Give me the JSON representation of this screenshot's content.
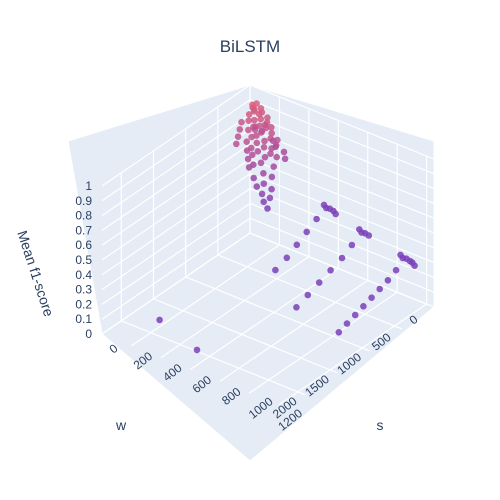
{
  "chart_data": {
    "type": "scatter",
    "title": "BiLSTM",
    "axes": {
      "x": {
        "label": "w",
        "ticks": [
          "0",
          "500",
          "1000",
          "1500",
          "2000"
        ]
      },
      "y": {
        "label": "s",
        "ticks": [
          "0",
          "200",
          "400",
          "600",
          "800",
          "1000",
          "1200"
        ]
      },
      "z": {
        "label": "Mean f1-score",
        "ticks": [
          "0",
          "0.1",
          "0.2",
          "0.3",
          "0.4",
          "0.5",
          "0.6",
          "0.7",
          "0.8",
          "0.9",
          "1"
        ]
      }
    },
    "colors": {
      "low": "#7b3fb8",
      "high": "#e0607a",
      "pane": "#e5ecf6",
      "grid": "#ffffff"
    },
    "points": [
      {
        "w": 80,
        "s": 80,
        "z": 0.93
      },
      {
        "w": 100,
        "s": 60,
        "z": 0.92
      },
      {
        "w": 120,
        "s": 70,
        "z": 0.91
      },
      {
        "w": 60,
        "s": 100,
        "z": 0.9
      },
      {
        "w": 140,
        "s": 90,
        "z": 0.9
      },
      {
        "w": 90,
        "s": 120,
        "z": 0.89
      },
      {
        "w": 110,
        "s": 110,
        "z": 0.88
      },
      {
        "w": 70,
        "s": 60,
        "z": 0.88
      },
      {
        "w": 150,
        "s": 60,
        "z": 0.87
      },
      {
        "w": 130,
        "s": 130,
        "z": 0.86
      },
      {
        "w": 160,
        "s": 100,
        "z": 0.85
      },
      {
        "w": 50,
        "s": 140,
        "z": 0.85
      },
      {
        "w": 100,
        "s": 160,
        "z": 0.84
      },
      {
        "w": 180,
        "s": 70,
        "z": 0.84
      },
      {
        "w": 170,
        "s": 140,
        "z": 0.83
      },
      {
        "w": 140,
        "s": 170,
        "z": 0.82
      },
      {
        "w": 200,
        "s": 110,
        "z": 0.82
      },
      {
        "w": 80,
        "s": 180,
        "z": 0.81
      },
      {
        "w": 190,
        "s": 160,
        "z": 0.8
      },
      {
        "w": 230,
        "s": 90,
        "z": 0.8
      },
      {
        "w": 120,
        "s": 200,
        "z": 0.79
      },
      {
        "w": 220,
        "s": 140,
        "z": 0.78
      },
      {
        "w": 250,
        "s": 120,
        "z": 0.77
      },
      {
        "w": 160,
        "s": 210,
        "z": 0.77
      },
      {
        "w": 210,
        "s": 190,
        "z": 0.76
      },
      {
        "w": 260,
        "s": 160,
        "z": 0.75
      },
      {
        "w": 100,
        "s": 230,
        "z": 0.75
      },
      {
        "w": 60,
        "s": 60,
        "z": 0.74
      },
      {
        "w": 280,
        "s": 100,
        "z": 0.74
      },
      {
        "w": 240,
        "s": 200,
        "z": 0.73
      },
      {
        "w": 140,
        "s": 240,
        "z": 0.73
      },
      {
        "w": 300,
        "s": 140,
        "z": 0.72
      },
      {
        "w": 190,
        "s": 230,
        "z": 0.72
      },
      {
        "w": 290,
        "s": 180,
        "z": 0.71
      },
      {
        "w": 320,
        "s": 120,
        "z": 0.7
      },
      {
        "w": 230,
        "s": 240,
        "z": 0.7
      },
      {
        "w": 330,
        "s": 160,
        "z": 0.69
      },
      {
        "w": 270,
        "s": 220,
        "z": 0.68
      },
      {
        "w": 180,
        "s": 260,
        "z": 0.67
      },
      {
        "w": 350,
        "s": 140,
        "z": 0.66
      },
      {
        "w": 310,
        "s": 210,
        "z": 0.65
      },
      {
        "w": 360,
        "s": 180,
        "z": 0.64
      },
      {
        "w": 250,
        "s": 270,
        "z": 0.63
      },
      {
        "w": 380,
        "s": 160,
        "z": 0.62
      },
      {
        "w": 340,
        "s": 240,
        "z": 0.6
      },
      {
        "w": 300,
        "s": 280,
        "z": 0.58
      },
      {
        "w": 400,
        "s": 200,
        "z": 0.57
      },
      {
        "w": 380,
        "s": 260,
        "z": 0.55
      },
      {
        "w": 420,
        "s": 230,
        "z": 0.53
      },
      {
        "w": 350,
        "s": 300,
        "z": 0.52
      },
      {
        "w": 430,
        "s": 270,
        "z": 0.5
      },
      {
        "w": 400,
        "s": 310,
        "z": 0.48
      },
      {
        "w": 450,
        "s": 290,
        "z": 0.46
      },
      {
        "w": 460,
        "s": 320,
        "z": 0.43
      },
      {
        "w": 100,
        "s": 80,
        "z": 0.78
      },
      {
        "w": 40,
        "s": 120,
        "z": 0.79
      },
      {
        "w": 20,
        "s": 90,
        "z": 0.73
      },
      {
        "w": 30,
        "s": 170,
        "z": 0.7
      },
      {
        "w": 60,
        "s": 200,
        "z": 0.68
      },
      {
        "w": 20,
        "s": 240,
        "z": 0.65
      },
      {
        "w": 50,
        "s": 260,
        "z": 0.62
      },
      {
        "w": 250,
        "s": 40,
        "z": 0.79
      },
      {
        "w": 300,
        "s": 50,
        "z": 0.76
      },
      {
        "w": 350,
        "s": 60,
        "z": 0.73
      },
      {
        "w": 200,
        "s": 30,
        "z": 0.82
      },
      {
        "w": 40,
        "s": 520,
        "z": 0.41
      },
      {
        "w": 50,
        "s": 540,
        "z": 0.4
      },
      {
        "w": 40,
        "s": 560,
        "z": 0.4
      },
      {
        "w": 30,
        "s": 580,
        "z": 0.39
      },
      {
        "w": 40,
        "s": 600,
        "z": 0.38
      },
      {
        "w": 200,
        "s": 540,
        "z": 0.37
      },
      {
        "w": 400,
        "s": 560,
        "z": 0.35
      },
      {
        "w": 600,
        "s": 580,
        "z": 0.33
      },
      {
        "w": 800,
        "s": 600,
        "z": 0.31
      },
      {
        "w": 1000,
        "s": 610,
        "z": 0.29
      },
      {
        "w": 40,
        "s": 760,
        "z": 0.34
      },
      {
        "w": 50,
        "s": 780,
        "z": 0.33
      },
      {
        "w": 40,
        "s": 800,
        "z": 0.33
      },
      {
        "w": 30,
        "s": 820,
        "z": 0.32
      },
      {
        "w": 200,
        "s": 780,
        "z": 0.29
      },
      {
        "w": 400,
        "s": 800,
        "z": 0.27
      },
      {
        "w": 600,
        "s": 810,
        "z": 0.25
      },
      {
        "w": 800,
        "s": 820,
        "z": 0.23
      },
      {
        "w": 1000,
        "s": 830,
        "z": 0.21
      },
      {
        "w": 1200,
        "s": 840,
        "z": 0.19
      },
      {
        "w": 40,
        "s": 1040,
        "z": 0.28
      },
      {
        "w": 50,
        "s": 1060,
        "z": 0.27
      },
      {
        "w": 40,
        "s": 1080,
        "z": 0.27
      },
      {
        "w": 30,
        "s": 1100,
        "z": 0.26
      },
      {
        "w": 40,
        "s": 1120,
        "z": 0.26
      },
      {
        "w": 50,
        "s": 1140,
        "z": 0.25
      },
      {
        "w": 200,
        "s": 1080,
        "z": 0.24
      },
      {
        "w": 350,
        "s": 1090,
        "z": 0.22
      },
      {
        "w": 500,
        "s": 1100,
        "z": 0.21
      },
      {
        "w": 650,
        "s": 1110,
        "z": 0.2
      },
      {
        "w": 800,
        "s": 1120,
        "z": 0.19
      },
      {
        "w": 950,
        "s": 1130,
        "z": 0.18
      },
      {
        "w": 1100,
        "s": 1140,
        "z": 0.17
      },
      {
        "w": 1250,
        "s": 1150,
        "z": 0.16
      },
      {
        "w": 2000,
        "s": 260,
        "z": 0.11
      },
      {
        "w": 2150,
        "s": 580,
        "z": 0.08
      }
    ]
  }
}
